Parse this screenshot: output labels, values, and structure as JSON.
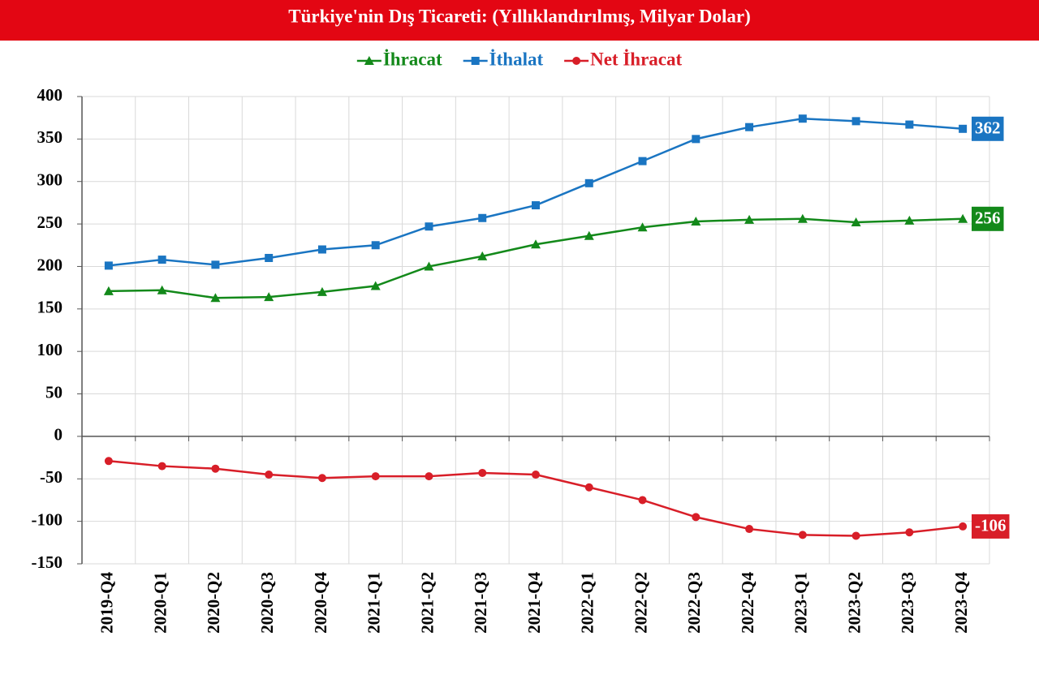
{
  "chart_data": {
    "type": "line",
    "title": "Türkiye'nin Dış Ticareti: (Yıllıklandırılmış, Milyar Dolar)",
    "categories": [
      "2019-Q4",
      "2020-Q1",
      "2020-Q2",
      "2020-Q3",
      "2020-Q4",
      "2021-Q1",
      "2021-Q2",
      "2021-Q3",
      "2021-Q4",
      "2022-Q1",
      "2022-Q2",
      "2022-Q3",
      "2022-Q4",
      "2023-Q1",
      "2023-Q2",
      "2023-Q3",
      "2023-Q4"
    ],
    "series": [
      {
        "name": "İhracat",
        "color": "#13891a",
        "marker": "triangle",
        "values": [
          171,
          172,
          163,
          164,
          170,
          177,
          200,
          212,
          226,
          236,
          246,
          253,
          255,
          256,
          252,
          254,
          256
        ]
      },
      {
        "name": "İthalat",
        "color": "#1a75c2",
        "marker": "square",
        "values": [
          201,
          208,
          202,
          210,
          220,
          225,
          247,
          257,
          272,
          298,
          324,
          350,
          364,
          374,
          371,
          367,
          362
        ]
      },
      {
        "name": "Net İhracat",
        "color": "#d81e28",
        "marker": "circle",
        "values": [
          -29,
          -35,
          -38,
          -45,
          -49,
          -47,
          -47,
          -43,
          -45,
          -60,
          -75,
          -95,
          -109,
          -116,
          -117,
          -113,
          -106
        ]
      }
    ],
    "ylim": [
      -150,
      400
    ],
    "yticks": [
      -150,
      -100,
      -50,
      0,
      50,
      100,
      150,
      200,
      250,
      300,
      350,
      400
    ],
    "grid": true,
    "legend": "top",
    "end_labels": true
  }
}
